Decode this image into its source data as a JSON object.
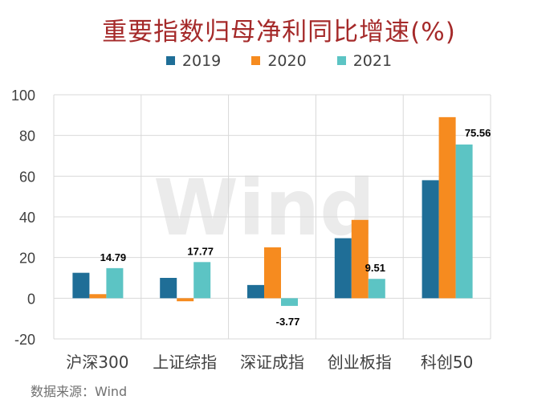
{
  "colors": {
    "title": "#a52a2a",
    "grid": "#d9d9d9",
    "axis_text": "#404040",
    "watermark": "#ebebeb"
  },
  "chart_data": {
    "type": "bar",
    "title": "重要指数归母净利同比增速(%)",
    "categories": [
      "沪深300",
      "上证综指",
      "深证成指",
      "创业板指",
      "科创50"
    ],
    "series": [
      {
        "name": "2019",
        "color": "#1f6e97",
        "values": [
          12.5,
          10,
          6.5,
          29.5,
          58
        ]
      },
      {
        "name": "2020",
        "color": "#f68b1f",
        "values": [
          2,
          -1.5,
          25,
          38.5,
          89
        ]
      },
      {
        "name": "2021",
        "color": "#5cc4c4",
        "values": [
          14.79,
          17.77,
          -3.77,
          9.51,
          75.56
        ]
      }
    ],
    "data_labels": {
      "series": "2021",
      "values": [
        "14.79",
        "17.77",
        "-3.77",
        "9.51",
        "75.56"
      ]
    },
    "y_ticks": [
      100,
      80,
      60,
      40,
      20,
      0,
      -20
    ],
    "ylim": [
      -20,
      100
    ],
    "xlabel": "",
    "ylabel": "",
    "grid": true,
    "legend_position": "top-center",
    "watermark": "Wind",
    "source": "数据来源：Wind"
  }
}
